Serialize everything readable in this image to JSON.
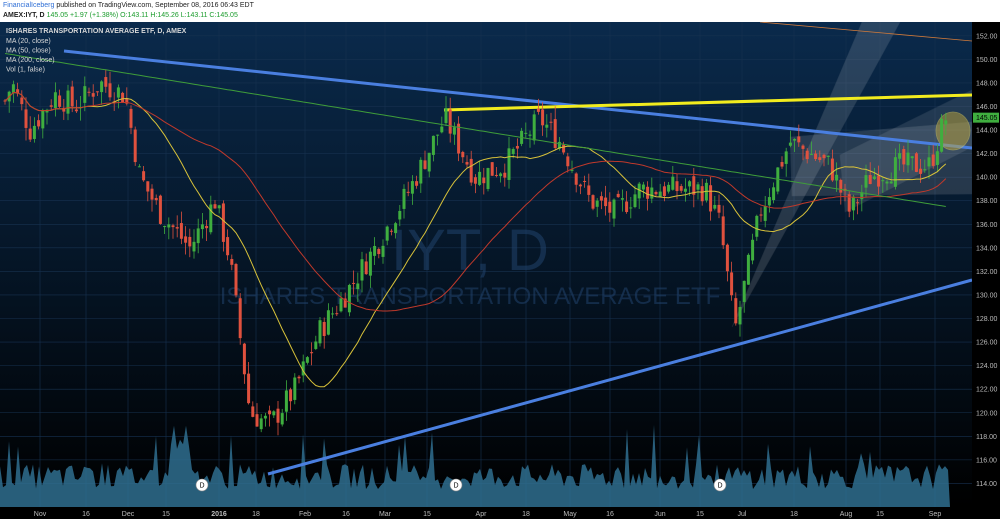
{
  "header": {
    "publisher": "FinancialIceberg",
    "published_text": "published on TradingView.com, September 08, 2016 06:43 EDT",
    "symbol_line": "AMEX:IYT, D",
    "close_value": "145.05",
    "change_text": "+1.97 (+1.38%)",
    "ohlc": "O:143.11 H:145.26 L:143.11 C:145.05"
  },
  "chart_data": {
    "type": "candlestick",
    "title": "ISHARES TRANSPORTATION AVERAGE ETF, D, AMEX",
    "watermark_symbol": "IYT, D",
    "watermark_name": "ISHARES TRANSPORTATION AVERAGE ETF",
    "indicators": [
      "MA (20, close)",
      "MA (50, close)",
      "MA (200, close)",
      "Vol (1, false)"
    ],
    "ylim": [
      112,
      153
    ],
    "y_ticks": [
      "152.00",
      "150.00",
      "148.00",
      "146.00",
      "144.00",
      "142.00",
      "140.00",
      "138.00",
      "136.00",
      "134.00",
      "132.00",
      "130.00",
      "128.00",
      "126.00",
      "124.00",
      "122.00",
      "120.00",
      "118.00",
      "116.00",
      "114.00"
    ],
    "last_price_label": "145.05",
    "x_labels": [
      "Nov",
      "16",
      "Dec",
      "15",
      "2016",
      "18",
      "Feb",
      "16",
      "Mar",
      "15",
      "Apr",
      "18",
      "May",
      "16",
      "Jun",
      "15",
      "Jul",
      "18",
      "Aug",
      "15",
      "Sep"
    ],
    "dividend_marker": "D",
    "candles_key_points": [
      {
        "date": "Nov 2015",
        "close": 147.5
      },
      {
        "date": "Jan 20 2016",
        "close": 118.5
      },
      {
        "date": "Mar 21 2016",
        "close": 145
      },
      {
        "date": "Jun 27 2016",
        "close": 127
      },
      {
        "date": "Jul 20 2016",
        "close": 143.5
      },
      {
        "date": "Sep 08 2016",
        "close": 145.05
      }
    ],
    "colors": {
      "up": "#3fae3f",
      "down": "#e0513e",
      "ma20": "#d8c23a",
      "ma50": "#c0392b",
      "ma200": "#3f9d3a",
      "trend": "#4a7fe0",
      "resistance": "#f2ec1e",
      "volume": "#2f6f8f"
    }
  }
}
